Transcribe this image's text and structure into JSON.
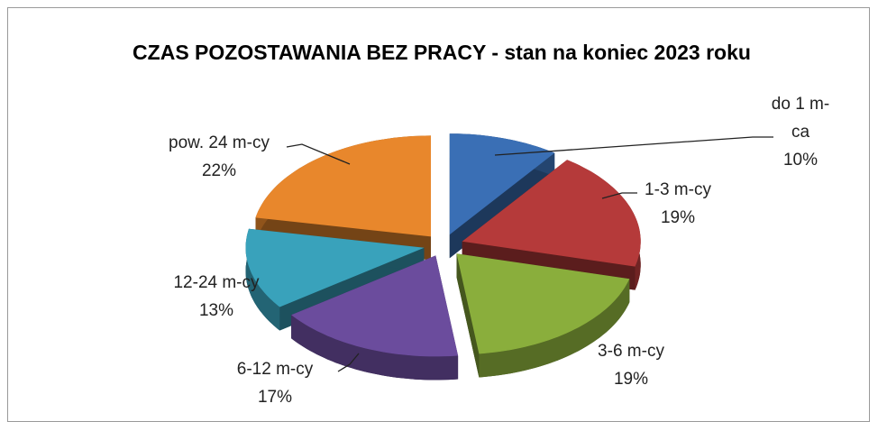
{
  "chart_data": {
    "type": "pie",
    "title": "CZAS POZOSTAWANIA BEZ PRACY - stan na koniec 2023 roku",
    "categories": [
      "do 1 m-ca",
      "1-3 m-cy",
      "3-6 m-cy",
      "6-12 m-cy",
      "12-24 m-cy",
      "pow. 24 m-cy"
    ],
    "values": [
      10,
      19,
      19,
      17,
      13,
      22
    ],
    "value_labels": [
      "10%",
      "19%",
      "19%",
      "17%",
      "13%",
      "22%"
    ],
    "colors": [
      "#3a6fb5",
      "#b53a3a",
      "#8aae3c",
      "#6b4c9d",
      "#39a2bb",
      "#e8872c"
    ]
  }
}
